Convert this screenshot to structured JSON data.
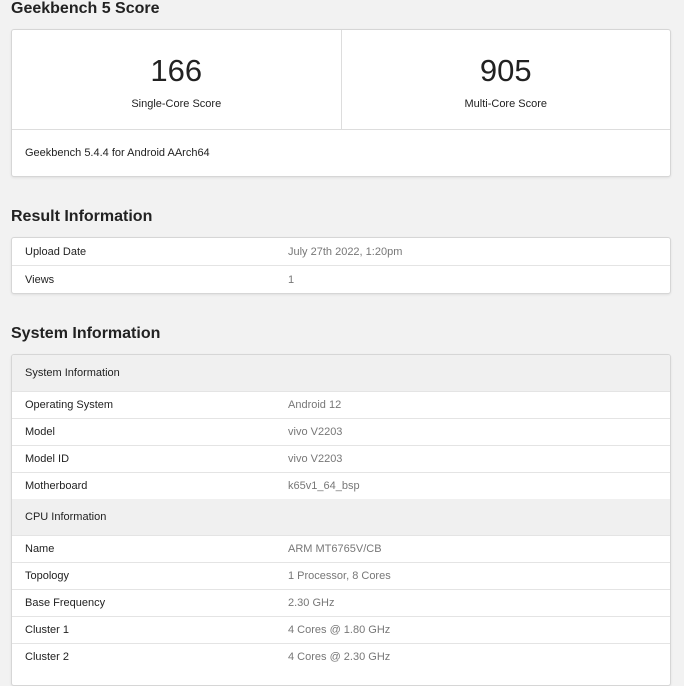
{
  "score_section": {
    "title": "Geekbench 5 Score",
    "single_core": {
      "value": "166",
      "label": "Single-Core Score"
    },
    "multi_core": {
      "value": "905",
      "label": "Multi-Core Score"
    },
    "version": "Geekbench 5.4.4 for Android AArch64"
  },
  "result_info": {
    "title": "Result Information",
    "rows": [
      {
        "label": "Upload Date",
        "value": "July 27th 2022, 1:20pm"
      },
      {
        "label": "Views",
        "value": "1"
      }
    ]
  },
  "system_info": {
    "title": "System Information",
    "system_header": "System Information",
    "system_rows": [
      {
        "label": "Operating System",
        "value": "Android 12"
      },
      {
        "label": "Model",
        "value": "vivo V2203"
      },
      {
        "label": "Model ID",
        "value": "vivo V2203"
      },
      {
        "label": "Motherboard",
        "value": "k65v1_64_bsp"
      }
    ],
    "cpu_header": "CPU Information",
    "cpu_rows": [
      {
        "label": "Name",
        "value": "ARM MT6765V/CB"
      },
      {
        "label": "Topology",
        "value": "1 Processor, 8 Cores"
      },
      {
        "label": "Base Frequency",
        "value": "2.30 GHz"
      },
      {
        "label": "Cluster 1",
        "value": "4 Cores @ 1.80 GHz"
      },
      {
        "label": "Cluster 2",
        "value": "4 Cores @ 2.30 GHz"
      }
    ]
  }
}
